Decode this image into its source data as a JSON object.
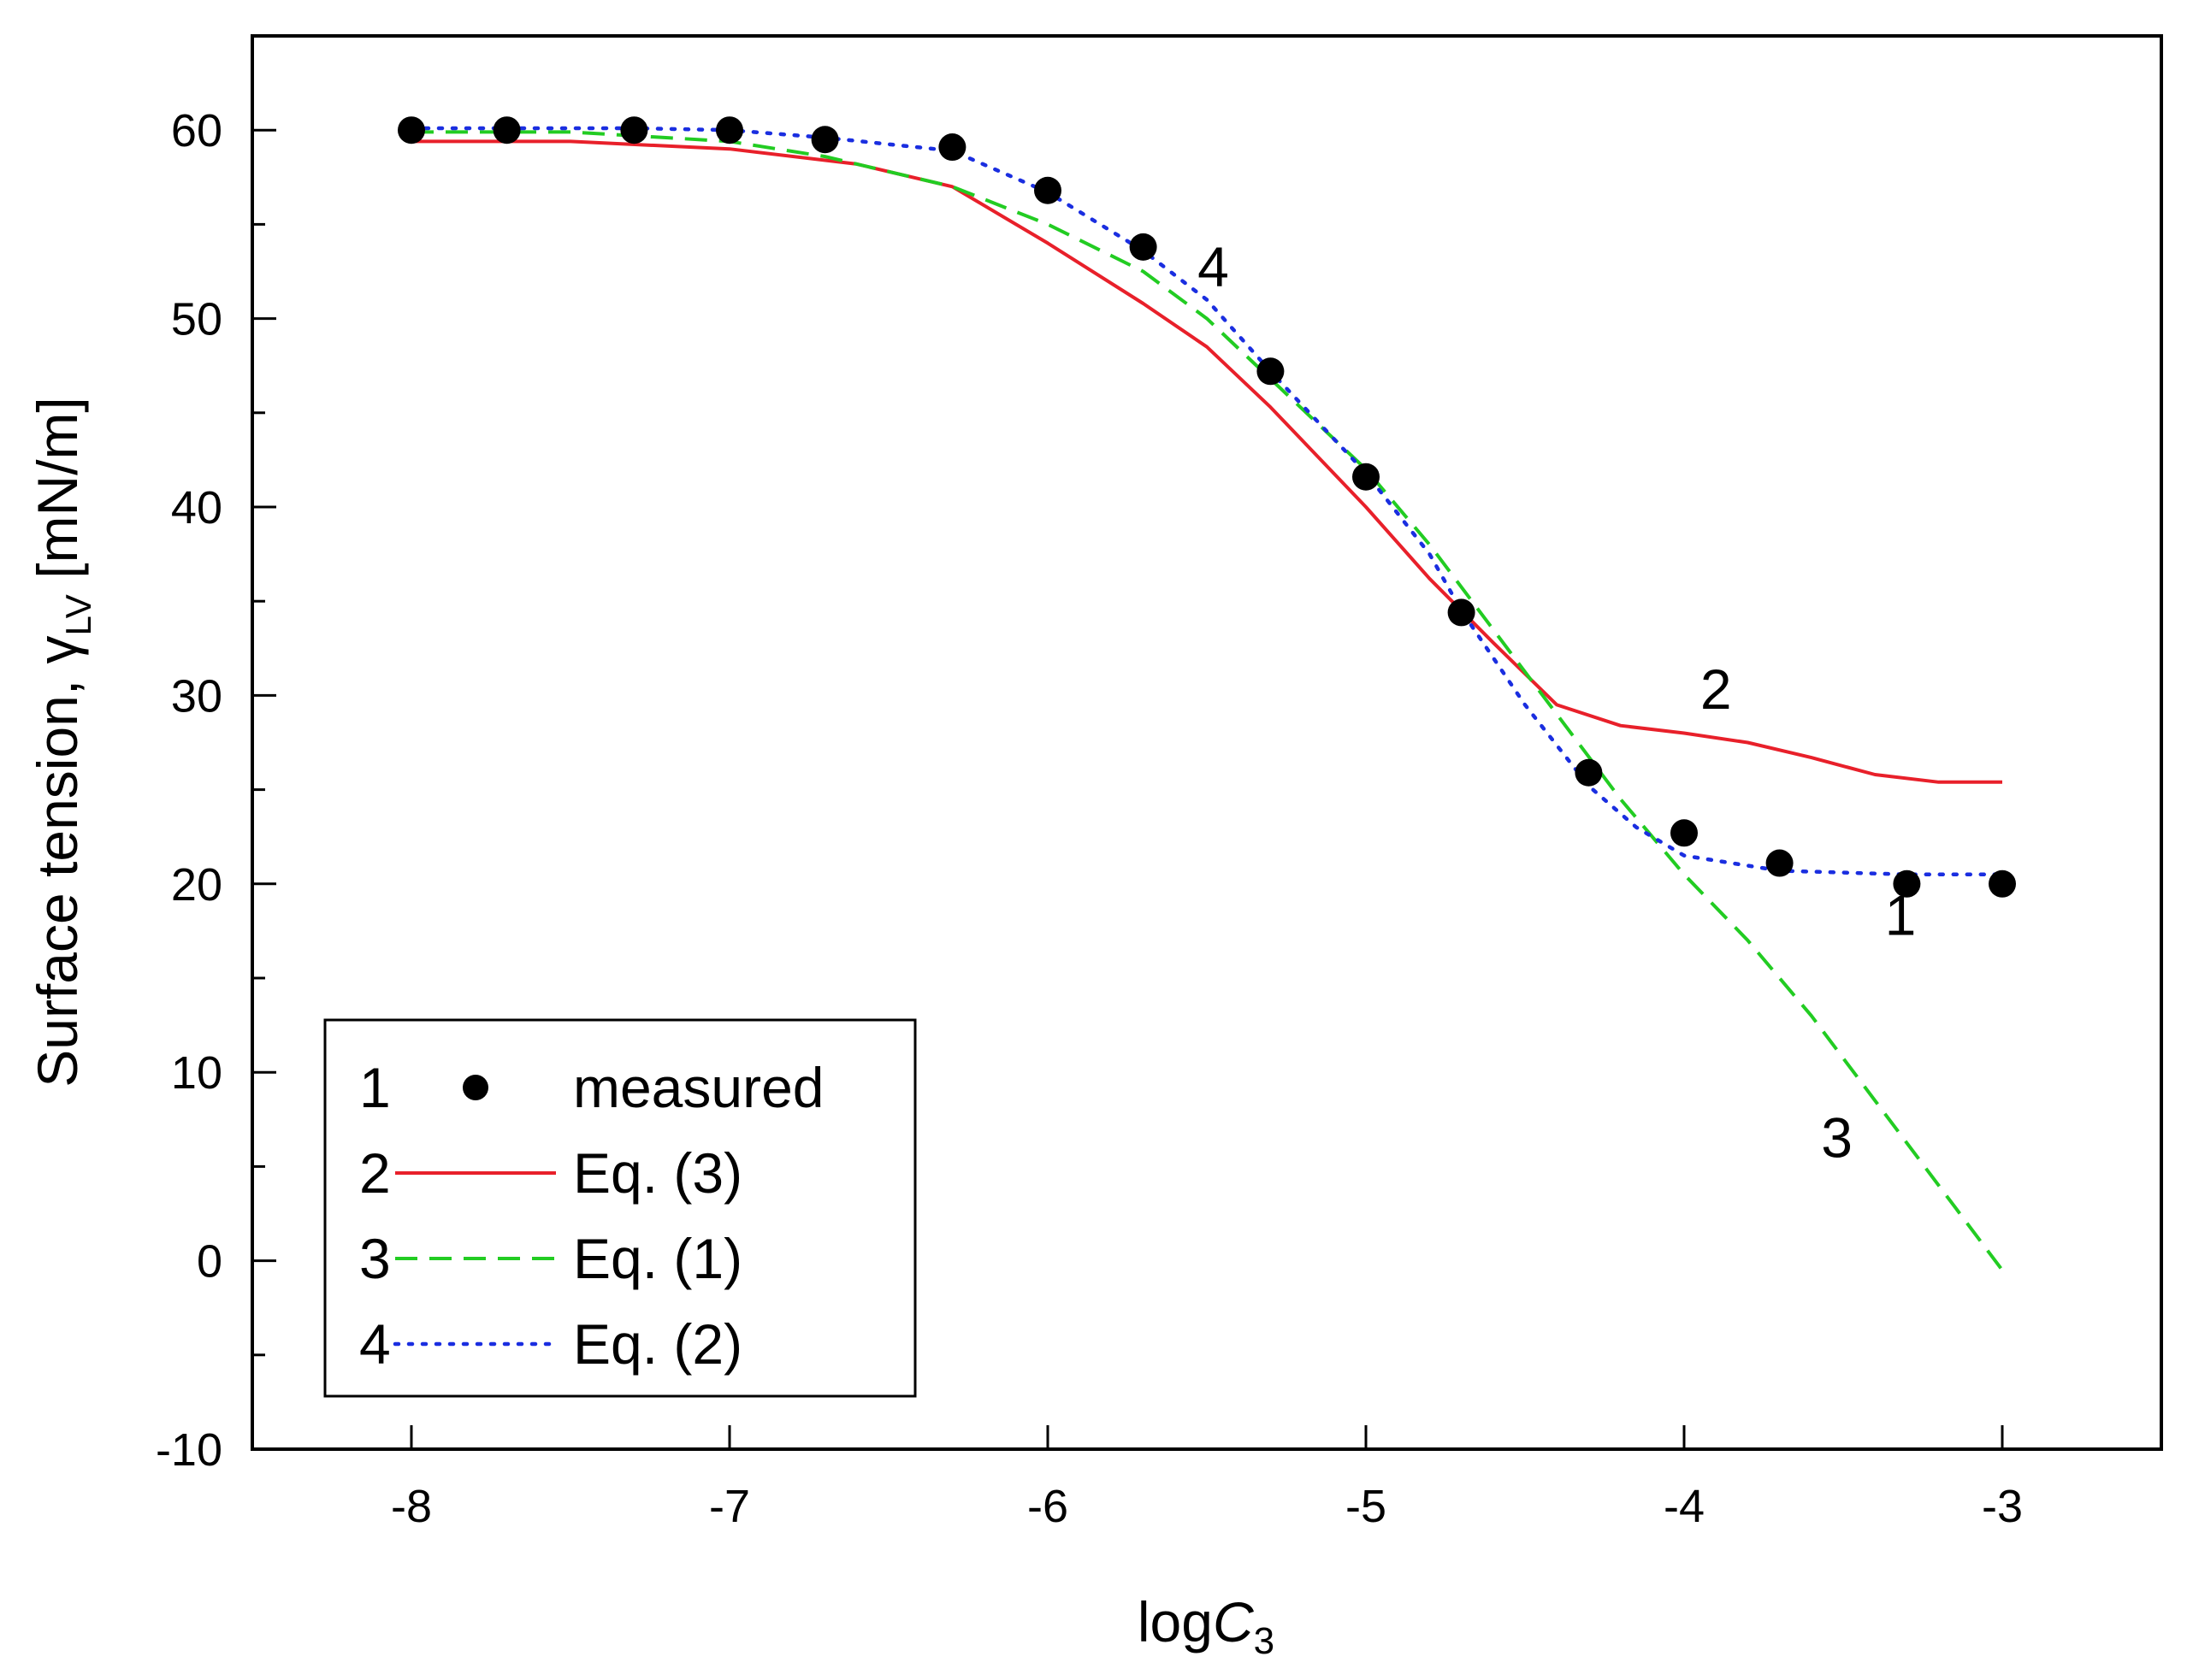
{
  "chart_data": {
    "type": "line",
    "title": "",
    "xlabel": {
      "main": "log",
      "italic": "C",
      "sub": "3"
    },
    "ylabel": {
      "main": "Surface tension, ",
      "greek": "γ",
      "sub": "LV",
      "unit": " [mN/m]"
    },
    "xlim": [
      -8.5,
      -2.5
    ],
    "ylim": [
      -10,
      65
    ],
    "xticks": [
      -8,
      -7,
      -6,
      -5,
      -4,
      -3
    ],
    "xtick_labels": [
      "-8",
      "-7",
      "-6",
      "-5",
      "-4",
      "-3"
    ],
    "yticks": [
      -10,
      0,
      10,
      20,
      30,
      40,
      50,
      60
    ],
    "ytick_labels": [
      "-10",
      "0",
      "10",
      "20",
      "30",
      "40",
      "50",
      "60"
    ],
    "series": [
      {
        "id": "1",
        "name": "measured",
        "style": "points",
        "color": "#000000",
        "x": [
          -8,
          -7.7,
          -7.3,
          -7,
          -6.7,
          -6.3,
          -6,
          -5.7,
          -5.3,
          -5,
          -4.7,
          -4.3,
          -4,
          -3.7,
          -3.3,
          -3
        ],
        "y": [
          60,
          60,
          60,
          60,
          59.5,
          59.1,
          56.8,
          53.8,
          47.2,
          41.6,
          34.4,
          25.9,
          22.7,
          21.1,
          20.0,
          20.0
        ]
      },
      {
        "id": "2",
        "name": "Eq. (3)",
        "style": "solid",
        "color": "#e8202a",
        "x": [
          -8,
          -7.5,
          -7,
          -6.6,
          -6.3,
          -6,
          -5.7,
          -5.5,
          -5.3,
          -5,
          -4.8,
          -4.6,
          -4.4,
          -4.2,
          -4,
          -3.8,
          -3.6,
          -3.4,
          -3.2,
          -3
        ],
        "y": [
          59.4,
          59.4,
          59.0,
          58.2,
          57.0,
          54.0,
          50.8,
          48.5,
          45.3,
          40.0,
          36.2,
          32.8,
          29.5,
          28.4,
          28.0,
          27.5,
          26.7,
          25.8,
          25.4,
          25.4
        ]
      },
      {
        "id": "3",
        "name": "Eq. (1)",
        "style": "dashed",
        "color": "#22cc22",
        "x": [
          -8,
          -7.5,
          -7,
          -6.7,
          -6.3,
          -6,
          -5.7,
          -5.5,
          -5.3,
          -5,
          -4.8,
          -4.6,
          -4.4,
          -4.2,
          -4,
          -3.8,
          -3.6,
          -3.4,
          -3.2,
          -3
        ],
        "y": [
          59.9,
          59.9,
          59.4,
          58.6,
          57.0,
          55.0,
          52.5,
          50.0,
          46.8,
          42.0,
          38.0,
          33.5,
          29.0,
          24.5,
          20.5,
          17.0,
          13.0,
          8.5,
          4.0,
          -0.5
        ]
      },
      {
        "id": "4",
        "name": "Eq. (2)",
        "style": "dotted",
        "color": "#1a2ee0",
        "x": [
          -8,
          -7.7,
          -7.3,
          -7,
          -6.7,
          -6.3,
          -6,
          -5.7,
          -5.5,
          -5.3,
          -5,
          -4.8,
          -4.7,
          -4.5,
          -4.3,
          -4.15,
          -4,
          -3.7,
          -3.3,
          -3
        ],
        "y": [
          60.1,
          60.1,
          60.1,
          60.0,
          59.6,
          58.9,
          56.7,
          53.6,
          51.0,
          47.2,
          41.8,
          37.5,
          34.5,
          29.5,
          25.2,
          23.0,
          21.5,
          20.7,
          20.5,
          20.5
        ]
      }
    ],
    "legend": {
      "position": "bottom-left",
      "entries": [
        {
          "number": "1",
          "label": "measured"
        },
        {
          "number": "2",
          "label": "Eq. (3)"
        },
        {
          "number": "3",
          "label": "Eq. (1)"
        },
        {
          "number": "4",
          "label": "Eq. (2)"
        }
      ]
    },
    "annotations": [
      {
        "text": "4",
        "x": -5.48,
        "y": 51.7
      },
      {
        "text": "2",
        "x": -3.9,
        "y": 29.3
      },
      {
        "text": "1",
        "x": -3.32,
        "y": 17.3
      },
      {
        "text": "3",
        "x": -3.52,
        "y": 5.5
      }
    ]
  }
}
